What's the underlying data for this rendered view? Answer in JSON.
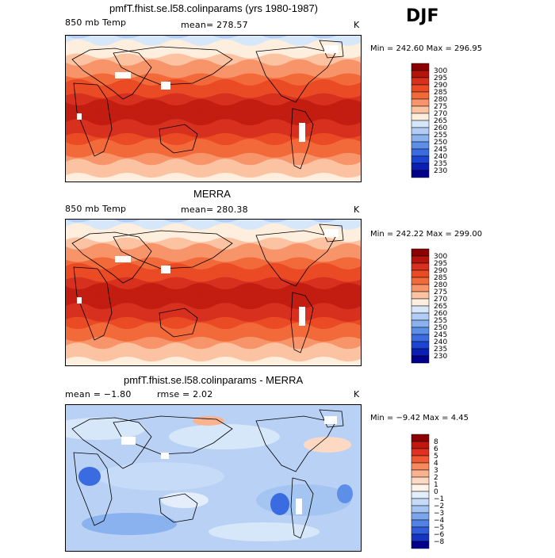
{
  "season": "DJF",
  "chart_data": [
    {
      "type": "heatmap",
      "title": "pmfT.fhist.se.l58.colinparams (yrs 1980-1987)",
      "variable": "850 mb Temp",
      "stat_text": "mean= 278.57",
      "units": "K",
      "minmax_text": "Min = 242.60 Max = 296.95",
      "colorbar_levels": [
        "300",
        "295",
        "290",
        "285",
        "280",
        "275",
        "270",
        "265",
        "260",
        "255",
        "250",
        "245",
        "240",
        "235",
        "230"
      ],
      "colorbar_colors": [
        "#8b0000",
        "#b5140c",
        "#d7301f",
        "#ea4a24",
        "#f26a3a",
        "#f8946a",
        "#fcc3a3",
        "#fdeede",
        "#d7e7fa",
        "#b1cdf5",
        "#89b2ee",
        "#5d8ee8",
        "#3a6be0",
        "#1c44d2",
        "#0b1fb5",
        "#00008b"
      ],
      "field": "model"
    },
    {
      "type": "heatmap",
      "title": "MERRA",
      "variable": "850 mb Temp",
      "stat_text": "mean= 280.38",
      "units": "K",
      "minmax_text": "Min = 242.22 Max = 299.00",
      "colorbar_levels": [
        "300",
        "295",
        "290",
        "285",
        "280",
        "275",
        "270",
        "265",
        "260",
        "255",
        "250",
        "245",
        "240",
        "235",
        "230"
      ],
      "colorbar_colors": [
        "#8b0000",
        "#b5140c",
        "#d7301f",
        "#ea4a24",
        "#f26a3a",
        "#f8946a",
        "#fcc3a3",
        "#fdeede",
        "#d7e7fa",
        "#b1cdf5",
        "#89b2ee",
        "#5d8ee8",
        "#3a6be0",
        "#1c44d2",
        "#0b1fb5",
        "#00008b"
      ],
      "field": "obs"
    },
    {
      "type": "heatmap",
      "title": "pmfT.fhist.se.l58.colinparams - MERRA",
      "variable": "mean =   −1.80",
      "stat_text": "rmse =   2.02",
      "units": "K",
      "minmax_text": "Min =  −9.42 Max =   4.45",
      "colorbar_levels": [
        "8",
        "6",
        "5",
        "4",
        "3",
        "2",
        "1",
        "0",
        "−1",
        "−2",
        "−3",
        "−4",
        "−5",
        "−6",
        "−8"
      ],
      "colorbar_colors": [
        "#8b0000",
        "#c0180c",
        "#e03020",
        "#ef5a35",
        "#f78a5e",
        "#fbb38f",
        "#fdd9c4",
        "#fff3ea",
        "#e4eefb",
        "#c5dbf7",
        "#a4c4f2",
        "#7ca6ec",
        "#5282e4",
        "#2f5ddb",
        "#1536c4",
        "#00008b"
      ],
      "field": "diff"
    }
  ]
}
